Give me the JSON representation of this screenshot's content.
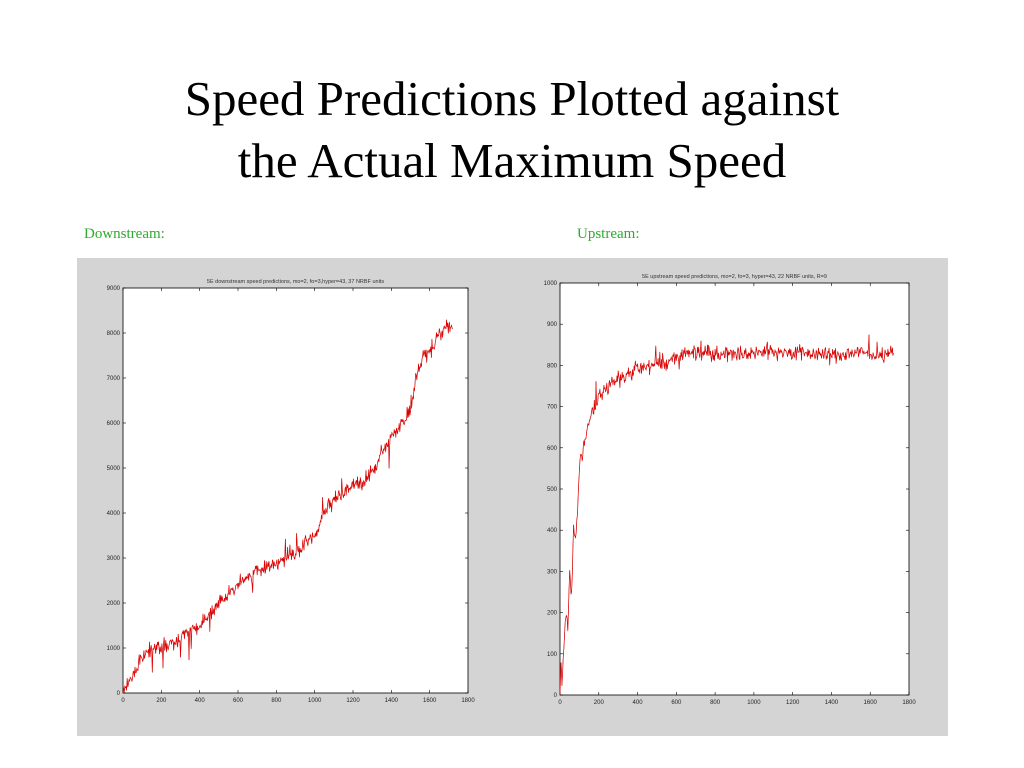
{
  "slide": {
    "title_line1": "Speed Predictions Plotted against",
    "title_line2": "the Actual Maximum Speed"
  },
  "panels": {
    "downstream_label": "Downstream:",
    "upstream_label": "Upstream:"
  },
  "colors": {
    "figure_background": "#d4d4d4",
    "prediction_line": "#e00000",
    "actual_line": "#333333",
    "label_green": "#2faa2f"
  },
  "chart_data": [
    {
      "type": "line",
      "title": "5E downstream speed predictions, mo=2, fo=3,hyper=43, 37 NRBF units",
      "xlim": [
        0,
        1800
      ],
      "ylim": [
        0,
        9000
      ],
      "xticks": [
        0,
        200,
        400,
        600,
        800,
        1000,
        1200,
        1400,
        1600,
        1800
      ],
      "yticks": [
        0,
        1000,
        2000,
        3000,
        4000,
        5000,
        6000,
        7000,
        8000,
        9000
      ],
      "grid": false,
      "series": [
        {
          "role": "predicted",
          "color": "#e00000",
          "x": [
            0,
            25,
            50,
            75,
            100,
            150,
            200,
            250,
            300,
            350,
            400,
            450,
            500,
            550,
            600,
            650,
            700,
            750,
            800,
            850,
            900,
            950,
            1000,
            1050,
            1100,
            1150,
            1200,
            1250,
            1300,
            1350,
            1400,
            1450,
            1500,
            1530,
            1560,
            1600,
            1650,
            1700,
            1720
          ],
          "y": [
            0,
            200,
            400,
            600,
            800,
            1000,
            1000,
            1100,
            1200,
            1400,
            1500,
            1800,
            2000,
            2200,
            2400,
            2600,
            2700,
            2800,
            2900,
            3000,
            3100,
            3300,
            3500,
            4000,
            4300,
            4500,
            4600,
            4700,
            4900,
            5300,
            5700,
            6000,
            6300,
            7000,
            7400,
            7600,
            8000,
            8200,
            8100
          ]
        }
      ]
    },
    {
      "type": "line",
      "title": "5E upstream speed predictions, mo=2, fo=3, hyper=43, 22 NRBF units, R=9",
      "xlim": [
        0,
        1800
      ],
      "ylim": [
        0,
        1000
      ],
      "xticks": [
        0,
        200,
        400,
        600,
        800,
        1000,
        1200,
        1400,
        1600,
        1800
      ],
      "yticks": [
        0,
        100,
        200,
        300,
        400,
        500,
        600,
        700,
        800,
        900,
        1000
      ],
      "grid": false,
      "series": [
        {
          "role": "predicted",
          "color": "#e00000",
          "x": [
            0,
            5,
            10,
            20,
            30,
            40,
            50,
            60,
            70,
            80,
            90,
            100,
            120,
            140,
            160,
            180,
            200,
            250,
            300,
            350,
            400,
            450,
            500,
            550,
            600,
            650,
            700,
            800,
            900,
            1000,
            1100,
            1200,
            1300,
            1400,
            1500,
            1600,
            1650,
            1700,
            1720
          ],
          "y": [
            0,
            80,
            20,
            120,
            200,
            150,
            300,
            250,
            400,
            380,
            450,
            550,
            600,
            650,
            680,
            700,
            720,
            750,
            770,
            780,
            790,
            800,
            800,
            810,
            820,
            830,
            835,
            830,
            830,
            830,
            835,
            830,
            830,
            825,
            830,
            830,
            825,
            830,
            830
          ]
        }
      ]
    }
  ]
}
